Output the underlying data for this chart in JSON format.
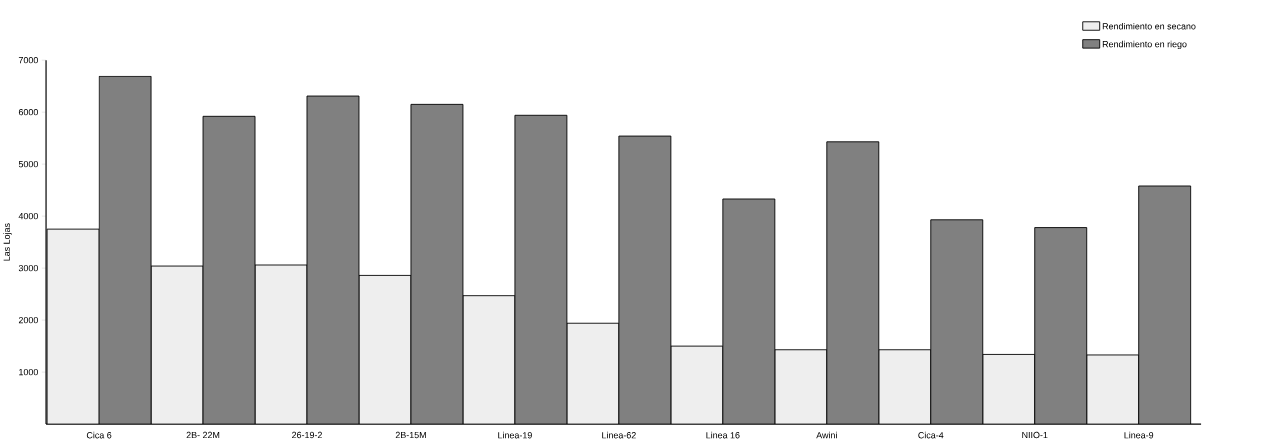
{
  "chart_data": {
    "type": "bar",
    "ylabel": "Las Lojas",
    "categories": [
      "Cica 6",
      "2B- 22M",
      "26-19-2",
      "2B-15M",
      "Linea-19",
      "Linea-62",
      "Linea 16",
      "Awini",
      "Cica-4",
      "NIIO-1",
      "Linea-9"
    ],
    "series": [
      {
        "name": "Rendimiento en secano",
        "color": "#eeeeee",
        "values": [
          3750,
          3040,
          3060,
          2860,
          2470,
          1940,
          1500,
          1430,
          1430,
          1340,
          1330
        ]
      },
      {
        "name": "Rendimiento en riego",
        "color": "#808080",
        "values": [
          6690,
          5920,
          6310,
          6150,
          5940,
          5540,
          4330,
          5430,
          3930,
          3780,
          4580
        ]
      }
    ],
    "ylim": [
      0,
      7000
    ],
    "yticks": [
      1000,
      2000,
      3000,
      4000,
      5000,
      6000,
      7000
    ],
    "legend": "top right"
  }
}
